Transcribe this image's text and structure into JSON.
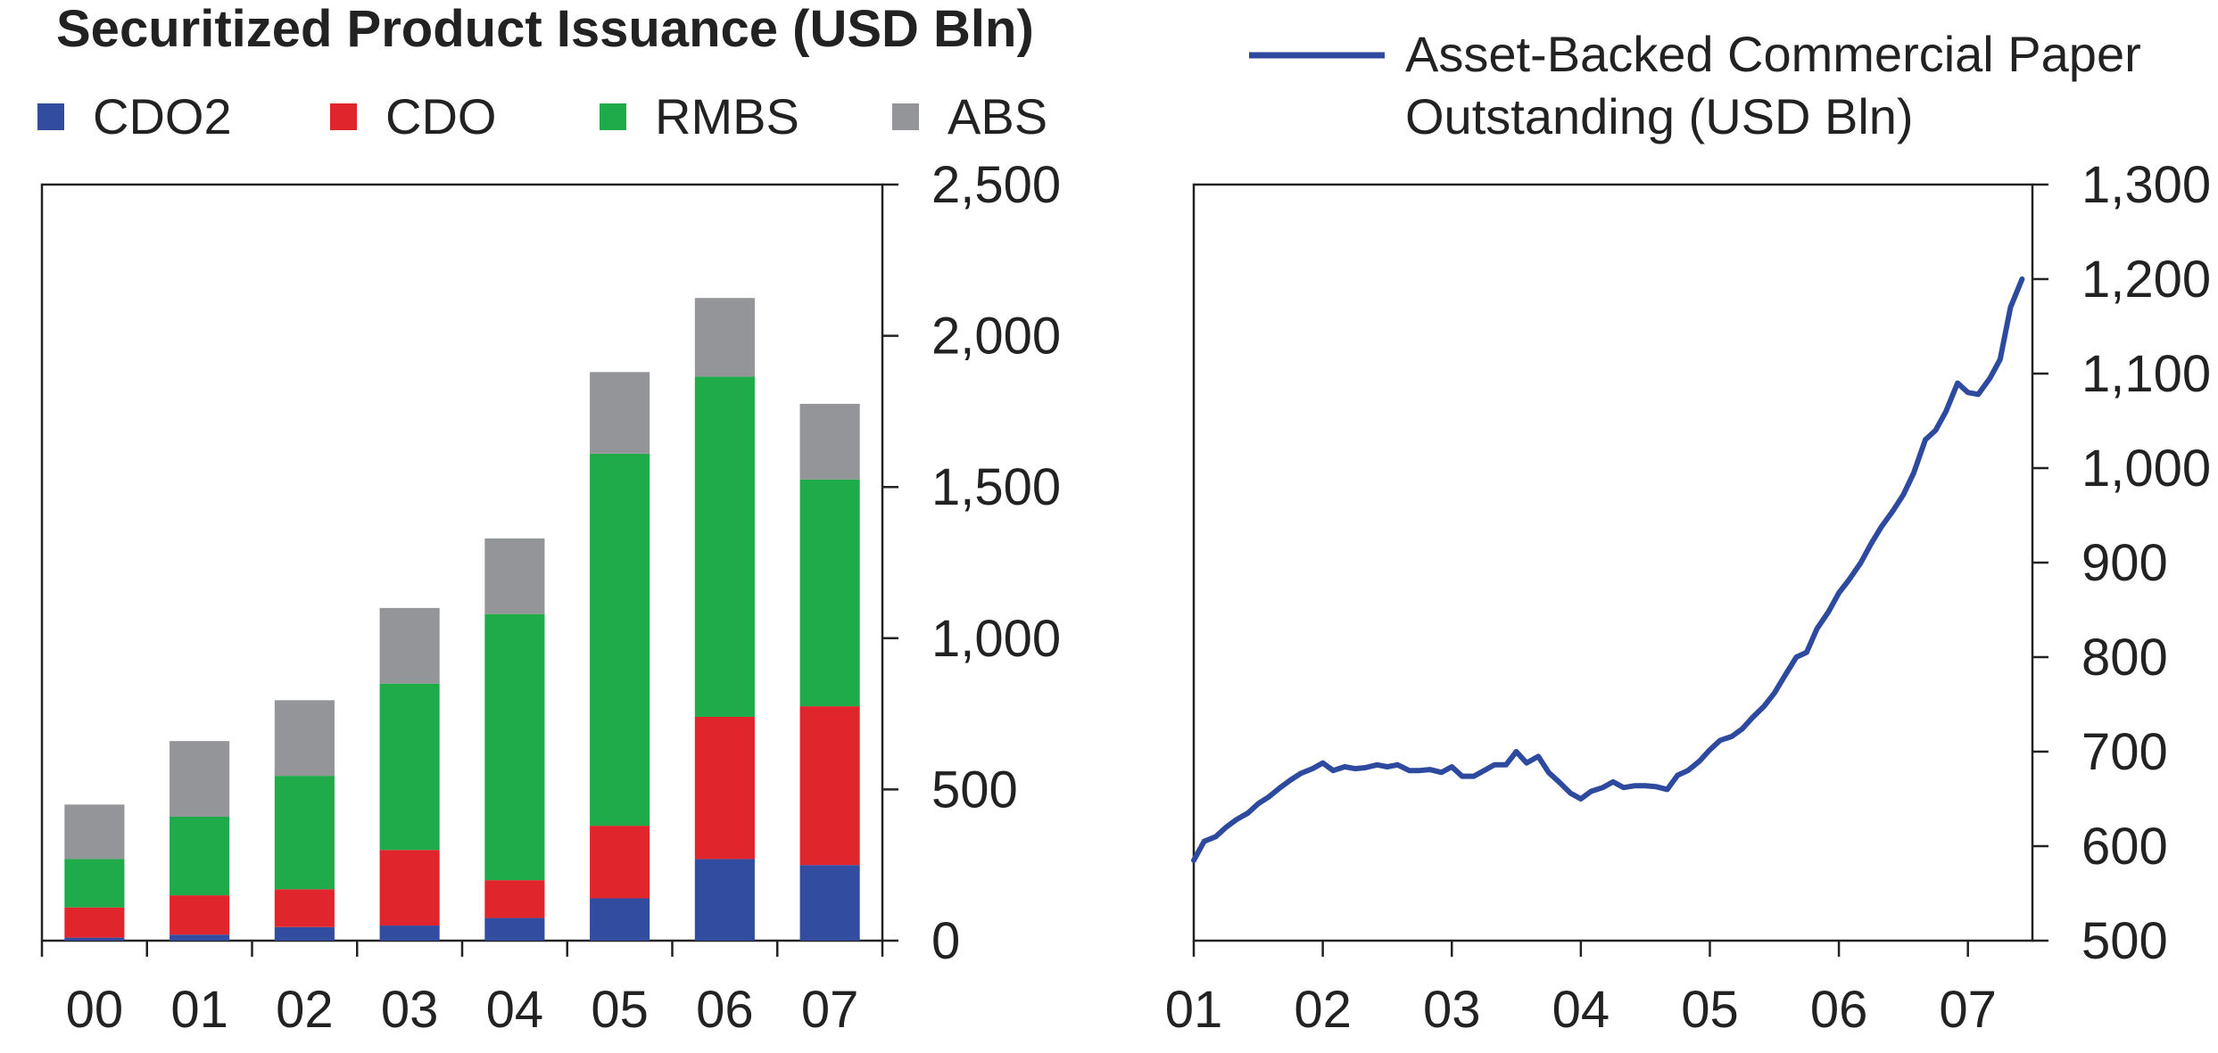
{
  "chart_data": [
    {
      "type": "bar",
      "stacked": true,
      "title": "Securitized Product Issuance (USD Bln)",
      "xlabel": "",
      "ylabel": "",
      "ylim": [
        0,
        2500
      ],
      "yticks": [
        0,
        500,
        1000,
        1500,
        2000,
        2500
      ],
      "ytick_labels": [
        "0",
        "500",
        "1,000",
        "1,500",
        "2,000",
        "2,500"
      ],
      "y_axis_side": "right",
      "grid": false,
      "legend_position": "top",
      "categories": [
        "00",
        "01",
        "02",
        "03",
        "04",
        "05",
        "06",
        "07"
      ],
      "series": [
        {
          "name": "CDO2",
          "color": "#324ca0",
          "values": [
            10,
            20,
            45,
            50,
            75,
            140,
            270,
            250
          ]
        },
        {
          "name": "CDO",
          "color": "#e0262c",
          "values": [
            100,
            130,
            125,
            250,
            125,
            240,
            470,
            525
          ]
        },
        {
          "name": "RMBS",
          "color": "#1fab4a",
          "values": [
            160,
            260,
            375,
            550,
            880,
            1230,
            1125,
            750
          ]
        },
        {
          "name": "ABS",
          "color": "#939598",
          "values": [
            180,
            250,
            250,
            250,
            250,
            270,
            260,
            250
          ]
        }
      ]
    },
    {
      "type": "line",
      "title": "",
      "xlabel": "",
      "ylabel": "",
      "ylim": [
        500,
        1300
      ],
      "yticks": [
        500,
        600,
        700,
        800,
        900,
        1000,
        1100,
        1200,
        1300
      ],
      "ytick_labels": [
        "500",
        "600",
        "700",
        "800",
        "900",
        "1,000",
        "1,100",
        "1,200",
        "1,300"
      ],
      "y_axis_side": "right",
      "xlim": [
        2001,
        2007.5
      ],
      "xticks": [
        2001,
        2002,
        2003,
        2004,
        2005,
        2006,
        2007
      ],
      "xtick_labels": [
        "01",
        "02",
        "03",
        "04",
        "05",
        "06",
        "07"
      ],
      "grid": false,
      "legend_position": "top",
      "series": [
        {
          "name": "Asset-Backed Commercial Paper Outstanding (USD Bln)",
          "legend_lines": [
            "Asset-Backed Commercial Paper",
            "Outstanding (USD Bln)"
          ],
          "color": "#2e4a9e",
          "x": [
            2001.0,
            2001.08,
            2001.17,
            2001.25,
            2001.33,
            2001.42,
            2001.5,
            2001.58,
            2001.67,
            2001.75,
            2001.83,
            2001.92,
            2002.0,
            2002.08,
            2002.17,
            2002.25,
            2002.33,
            2002.42,
            2002.5,
            2002.58,
            2002.67,
            2002.75,
            2002.83,
            2002.92,
            2003.0,
            2003.08,
            2003.17,
            2003.25,
            2003.33,
            2003.42,
            2003.5,
            2003.58,
            2003.67,
            2003.75,
            2003.83,
            2003.92,
            2004.0,
            2004.08,
            2004.17,
            2004.25,
            2004.33,
            2004.42,
            2004.5,
            2004.58,
            2004.67,
            2004.75,
            2004.83,
            2004.92,
            2005.0,
            2005.08,
            2005.17,
            2005.25,
            2005.33,
            2005.42,
            2005.5,
            2005.58,
            2005.67,
            2005.75,
            2005.83,
            2005.92,
            2006.0,
            2006.08,
            2006.17,
            2006.25,
            2006.33,
            2006.42,
            2006.5,
            2006.58,
            2006.67,
            2006.75,
            2006.83,
            2006.92,
            2007.0,
            2007.08,
            2007.17,
            2007.25,
            2007.33,
            2007.42
          ],
          "y": [
            585,
            605,
            610,
            620,
            628,
            635,
            645,
            652,
            662,
            670,
            677,
            682,
            688,
            680,
            684,
            682,
            683,
            686,
            684,
            686,
            680,
            680,
            681,
            678,
            684,
            674,
            674,
            680,
            686,
            686,
            700,
            688,
            695,
            678,
            668,
            656,
            650,
            658,
            662,
            668,
            662,
            664,
            664,
            663,
            660,
            675,
            680,
            690,
            702,
            712,
            716,
            724,
            736,
            748,
            762,
            780,
            800,
            805,
            830,
            848,
            868,
            882,
            900,
            920,
            938,
            955,
            972,
            995,
            1030,
            1040,
            1060,
            1090,
            1080,
            1078,
            1095,
            1115,
            1170,
            1200
          ]
        }
      ]
    }
  ]
}
